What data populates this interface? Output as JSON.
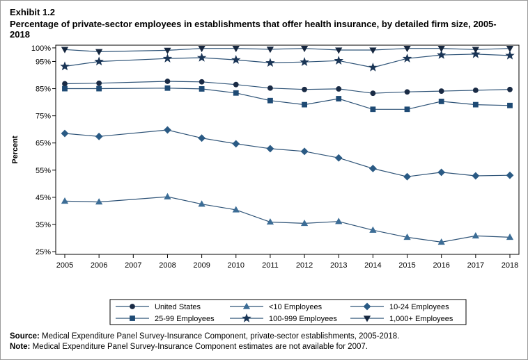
{
  "exhibit": "Exhibit 1.2",
  "title": "Percentage of private-sector employees in establishments that offer health insurance, by detailed firm size, 2005-2018",
  "footnotes": {
    "source_label": "Source:",
    "source_text": "Medical Expenditure Panel Survey-Insurance Component, private-sector establishments, 2005-2018.",
    "note_label": "Note:",
    "note_text": "Medical Expenditure Panel Survey-Insurance Component estimates are not available for 2007."
  },
  "chart_data": {
    "type": "line",
    "title": "",
    "xlabel": "",
    "ylabel": "Percent",
    "x": [
      2005,
      2006,
      2007,
      2008,
      2009,
      2010,
      2011,
      2012,
      2013,
      2014,
      2015,
      2016,
      2017,
      2018
    ],
    "x_tick_labels": [
      "2005",
      "2006",
      "2007",
      "2008",
      "2009",
      "2010",
      "2011",
      "2012",
      "2013",
      "2014",
      "2015",
      "2016",
      "2017",
      "2018"
    ],
    "ylim": [
      24,
      101
    ],
    "y_ticks": [
      25,
      35,
      45,
      55,
      65,
      75,
      85,
      95,
      100
    ],
    "y_tick_labels": [
      "25%",
      "35%",
      "45%",
      "55%",
      "65%",
      "75%",
      "85%",
      "95%",
      "100%"
    ],
    "grid": false,
    "legend_position": "bottom",
    "line_color": "#2e5377",
    "series": [
      {
        "name": "United States",
        "marker": "circle",
        "color": "#1a2b45",
        "x": [
          2005,
          2006,
          2008,
          2009,
          2010,
          2011,
          2012,
          2013,
          2014,
          2015,
          2016,
          2017,
          2018
        ],
        "values": [
          86.8,
          87.0,
          87.7,
          87.5,
          86.5,
          85.2,
          84.7,
          84.9,
          83.3,
          83.8,
          84.1,
          84.4,
          84.7
        ]
      },
      {
        "name": "<10 Employees",
        "marker": "triangle",
        "color": "#3c6d96",
        "x": [
          2005,
          2006,
          2008,
          2009,
          2010,
          2011,
          2012,
          2013,
          2014,
          2015,
          2016,
          2017,
          2018
        ],
        "values": [
          43.6,
          43.3,
          45.2,
          42.5,
          40.4,
          35.9,
          35.4,
          36.1,
          32.9,
          30.3,
          28.5,
          30.8,
          30.3
        ]
      },
      {
        "name": "10-24 Employees",
        "marker": "diamond",
        "color": "#2a5a84",
        "x": [
          2005,
          2006,
          2008,
          2009,
          2010,
          2011,
          2012,
          2013,
          2014,
          2015,
          2016,
          2017,
          2018
        ],
        "values": [
          68.5,
          67.4,
          69.8,
          66.8,
          64.7,
          62.9,
          61.9,
          59.5,
          55.6,
          52.6,
          54.2,
          52.9,
          53.1
        ]
      },
      {
        "name": "25-99 Employees",
        "marker": "square",
        "color": "#1e4a74",
        "x": [
          2005,
          2006,
          2008,
          2009,
          2010,
          2011,
          2012,
          2013,
          2014,
          2015,
          2016,
          2017,
          2018
        ],
        "values": [
          85.0,
          85.0,
          85.2,
          84.9,
          83.4,
          80.6,
          79.1,
          81.3,
          77.4,
          77.4,
          80.3,
          79.1,
          78.8
        ]
      },
      {
        "name": "100-999 Employees",
        "marker": "star",
        "color": "#1a3556",
        "x": [
          2005,
          2006,
          2008,
          2009,
          2010,
          2011,
          2012,
          2013,
          2014,
          2015,
          2016,
          2017,
          2018
        ],
        "values": [
          93.2,
          95.0,
          96.1,
          96.4,
          95.6,
          94.5,
          94.8,
          95.3,
          92.8,
          96.1,
          97.4,
          97.7,
          97.2
        ]
      },
      {
        "name": "1,000+ Employees",
        "marker": "triangle-down",
        "color": "#16273f",
        "x": [
          2005,
          2006,
          2008,
          2009,
          2010,
          2011,
          2012,
          2013,
          2014,
          2015,
          2016,
          2017,
          2018
        ],
        "values": [
          99.4,
          98.6,
          99.1,
          99.8,
          99.8,
          99.5,
          99.8,
          99.2,
          99.2,
          99.8,
          99.8,
          99.4,
          99.8
        ]
      }
    ]
  }
}
